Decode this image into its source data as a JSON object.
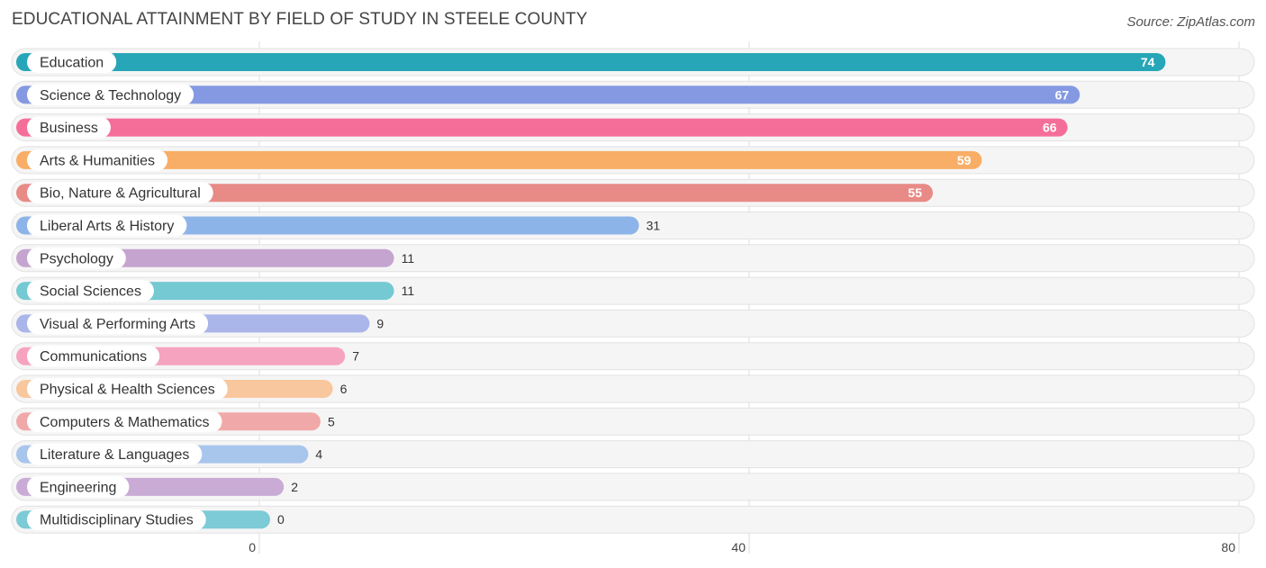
{
  "header": {
    "title": "EDUCATIONAL ATTAINMENT BY FIELD OF STUDY IN STEELE COUNTY",
    "source": "Source: ZipAtlas.com"
  },
  "chart_data": {
    "type": "bar",
    "orientation": "horizontal",
    "title": "EDUCATIONAL ATTAINMENT BY FIELD OF STUDY IN STEELE COUNTY",
    "xlabel": "",
    "ylabel": "",
    "xlim": [
      0,
      80
    ],
    "xticks": [
      "0",
      "40",
      "80"
    ],
    "grid": true,
    "categories": [
      "Education",
      "Science & Technology",
      "Business",
      "Arts & Humanities",
      "Bio, Nature & Agricultural",
      "Liberal Arts & History",
      "Psychology",
      "Social Sciences",
      "Visual & Performing Arts",
      "Communications",
      "Physical & Health Sciences",
      "Computers & Mathematics",
      "Literature & Languages",
      "Engineering",
      "Multidisciplinary Studies"
    ],
    "values": [
      74,
      67,
      66,
      59,
      55,
      31,
      11,
      11,
      9,
      7,
      6,
      5,
      4,
      2,
      0
    ],
    "colors": [
      "#27a6b8",
      "#8499e2",
      "#f56e9a",
      "#f8ae66",
      "#e88a86",
      "#8db4e8",
      "#c5a4cf",
      "#74c9d3",
      "#aab5ea",
      "#f6a3c0",
      "#f9c79e",
      "#f0a9a8",
      "#a8c5ec",
      "#c9abd6",
      "#7ccbd6"
    ]
  }
}
